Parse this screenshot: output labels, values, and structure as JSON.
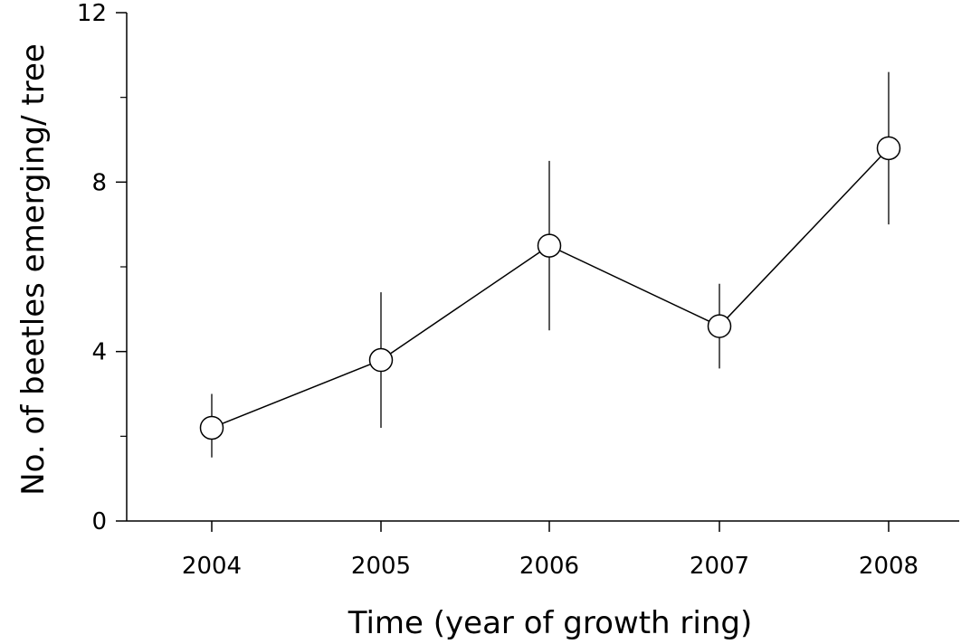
{
  "chart_data": {
    "type": "line",
    "xlabel": "Time (year of growth ring)",
    "ylabel": "No. of beetles emerging/ tree",
    "x": [
      "2004",
      "2005",
      "2006",
      "2007",
      "2008"
    ],
    "series": [
      {
        "values": [
          2.2,
          3.8,
          6.5,
          4.6,
          8.8
        ],
        "error_low": [
          1.5,
          2.2,
          4.5,
          3.6,
          7.0
        ],
        "error_high": [
          3.0,
          5.4,
          8.5,
          5.6,
          10.6
        ]
      }
    ],
    "ylim": [
      0,
      12
    ],
    "yticks": [
      0,
      4,
      8,
      12
    ],
    "y_minor_ticks": [
      2,
      6,
      10
    ],
    "y_tick_labels": [
      "0",
      "4",
      "8",
      "12"
    ],
    "grid": false,
    "marker": "open-circle",
    "line_color": "#000000"
  }
}
